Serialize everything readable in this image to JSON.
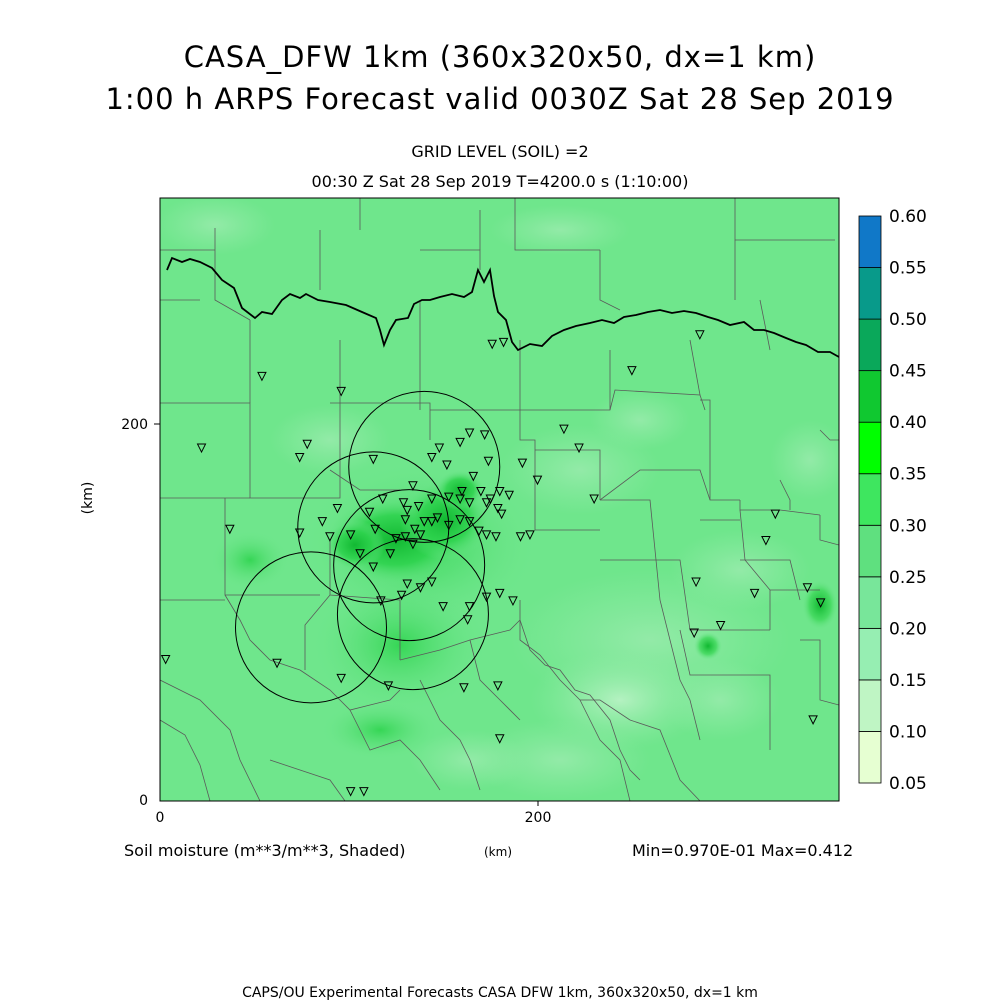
{
  "title_line1": "CASA_DFW 1km (360x320x50, dx=1 km)",
  "title_line2": "1:00 h ARPS Forecast valid 0030Z Sat 28 Sep 2019",
  "grid_level": "GRID LEVEL (SOIL) =2",
  "time_line": "00:30 Z Sat 28 Sep 2019   T=4200.0 s (1:10:00)",
  "variable_label": "Soil moisture (m**3/m**3, Shaded)",
  "x_unit": "(km)",
  "y_unit": "(km)",
  "minmax": "Min=0.970E-01 Max=0.412",
  "footer": "CAPS/OU Experimental Forecasts  CASA DFW 1km, 360x320x50, dx=1 km",
  "axes": {
    "x_ticks": [
      "0",
      "200"
    ],
    "y_ticks": [
      "0",
      "200"
    ]
  },
  "colorbar": {
    "labels": [
      "0.05",
      "0.10",
      "0.15",
      "0.20",
      "0.25",
      "0.30",
      "0.35",
      "0.40",
      "0.45",
      "0.50",
      "0.55",
      "0.60"
    ],
    "colors": [
      "#e6ffd2",
      "#bff5c4",
      "#96eeb2",
      "#78e69a",
      "#5fe07f",
      "#3ee65f",
      "#00ff00",
      "#10c830",
      "#0aa85a",
      "#089a8a",
      "#1078c8",
      "#1060f0"
    ]
  },
  "field": {
    "background": "#6fe68c",
    "color_max": "#19c23a",
    "color_min": "#b8f2c4"
  },
  "radars": [
    {
      "x": 140,
      "y": 177,
      "r": 40
    },
    {
      "x": 113,
      "y": 145,
      "r": 40
    },
    {
      "x": 132,
      "y": 125,
      "r": 40
    },
    {
      "x": 134,
      "y": 99,
      "r": 40
    },
    {
      "x": 80,
      "y": 92,
      "r": 40
    }
  ],
  "stations": [
    [
      54,
      225
    ],
    [
      96,
      217
    ],
    [
      250,
      228
    ],
    [
      286,
      247
    ],
    [
      182,
      243
    ],
    [
      176,
      242
    ],
    [
      22,
      187
    ],
    [
      78,
      189
    ],
    [
      74,
      182
    ],
    [
      113,
      181
    ],
    [
      144,
      182
    ],
    [
      159,
      190
    ],
    [
      164,
      195
    ],
    [
      172,
      194
    ],
    [
      148,
      187
    ],
    [
      152,
      178
    ],
    [
      174,
      180
    ],
    [
      166,
      172
    ],
    [
      192,
      179
    ],
    [
      222,
      187
    ],
    [
      214,
      197
    ],
    [
      200,
      170
    ],
    [
      230,
      160
    ],
    [
      180,
      164
    ],
    [
      185,
      162
    ],
    [
      160,
      164
    ],
    [
      164,
      158
    ],
    [
      173,
      158
    ],
    [
      181,
      152
    ],
    [
      134,
      167
    ],
    [
      144,
      160
    ],
    [
      153,
      161
    ],
    [
      159,
      160
    ],
    [
      170,
      164
    ],
    [
      175,
      160
    ],
    [
      179,
      155
    ],
    [
      129,
      158
    ],
    [
      131,
      154
    ],
    [
      137,
      156
    ],
    [
      140,
      148
    ],
    [
      147,
      150
    ],
    [
      153,
      146
    ],
    [
      159,
      149
    ],
    [
      164,
      148
    ],
    [
      169,
      143
    ],
    [
      173,
      141
    ],
    [
      178,
      140
    ],
    [
      130,
      149
    ],
    [
      135,
      144
    ],
    [
      138,
      141
    ],
    [
      144,
      148
    ],
    [
      118,
      160
    ],
    [
      111,
      153
    ],
    [
      94,
      155
    ],
    [
      86,
      148
    ],
    [
      90,
      140
    ],
    [
      101,
      141
    ],
    [
      114,
      144
    ],
    [
      125,
      139
    ],
    [
      130,
      140
    ],
    [
      134,
      136
    ],
    [
      37,
      144
    ],
    [
      74,
      142
    ],
    [
      106,
      131
    ],
    [
      113,
      124
    ],
    [
      122,
      131
    ],
    [
      131,
      115
    ],
    [
      138,
      113
    ],
    [
      144,
      116
    ],
    [
      117,
      106
    ],
    [
      128,
      109
    ],
    [
      150,
      103
    ],
    [
      164,
      103
    ],
    [
      173,
      108
    ],
    [
      163,
      96
    ],
    [
      180,
      110
    ],
    [
      187,
      106
    ],
    [
      191,
      140
    ],
    [
      196,
      141
    ],
    [
      62,
      73
    ],
    [
      3,
      75
    ],
    [
      96,
      65
    ],
    [
      121,
      61
    ],
    [
      161,
      60
    ],
    [
      179,
      61
    ],
    [
      180,
      33
    ],
    [
      101,
      5
    ],
    [
      108,
      5
    ],
    [
      283,
      89
    ],
    [
      297,
      93
    ],
    [
      315,
      110
    ],
    [
      321,
      138
    ],
    [
      284,
      116
    ],
    [
      346,
      43
    ],
    [
      326,
      152
    ],
    [
      343,
      113
    ],
    [
      350,
      105
    ]
  ]
}
